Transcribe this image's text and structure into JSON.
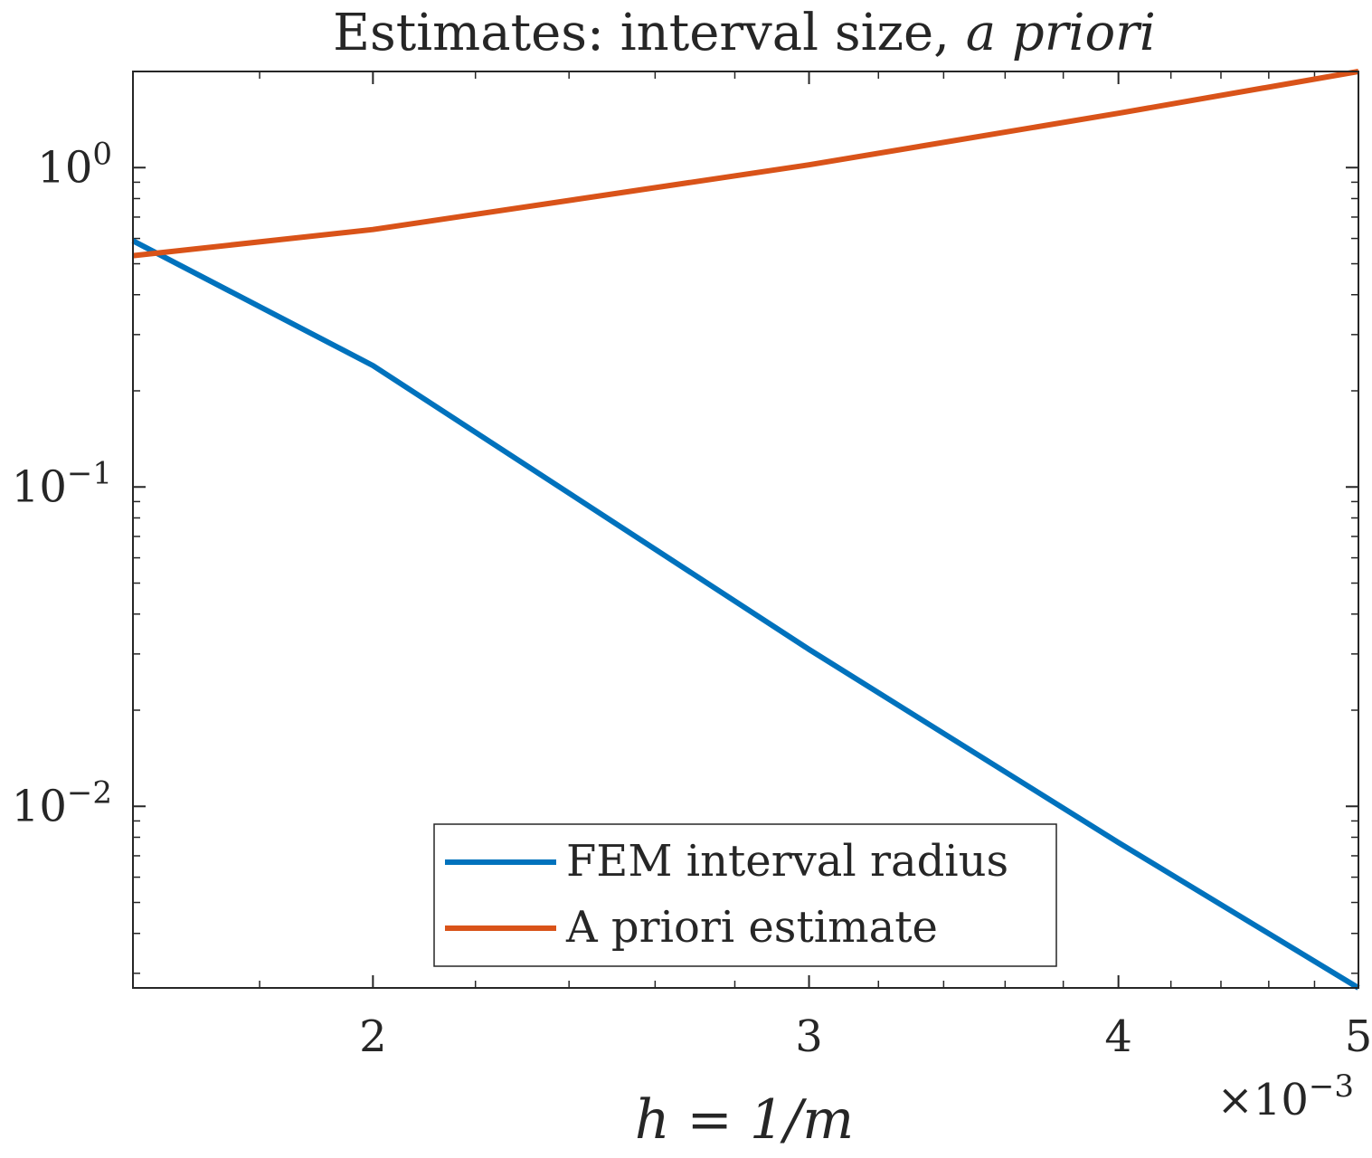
{
  "chart_data": {
    "type": "line",
    "title": "Estimates: interval size, a priori",
    "title_plain": "Estimates: interval size, ",
    "title_italic": "a priori",
    "xlabel": "h = 1/m",
    "x_exponent_label": "×10",
    "x_exponent": "−3",
    "xscale": "log",
    "yscale": "log",
    "xlim": [
      0.0016,
      0.005
    ],
    "ylim": [
      0.0027,
      2.0
    ],
    "x_ticks": [
      {
        "value": 0.002,
        "label": "2"
      },
      {
        "value": 0.003,
        "label": "3"
      },
      {
        "value": 0.004,
        "label": "4"
      },
      {
        "value": 0.005,
        "label": "5"
      }
    ],
    "y_ticks": [
      {
        "value": 1,
        "base": "10",
        "exp": "0"
      },
      {
        "value": 0.1,
        "base": "10",
        "exp": "−1"
      },
      {
        "value": 0.01,
        "base": "10",
        "exp": "−2"
      }
    ],
    "grid": false,
    "legend_position": "bottom-center",
    "series": [
      {
        "name": "FEM interval radius",
        "color": "#0072BD",
        "x": [
          0.0016,
          0.002,
          0.003,
          0.004,
          0.005
        ],
        "y": [
          0.59,
          0.24,
          0.031,
          0.0077,
          0.0027
        ]
      },
      {
        "name": "A priori estimate",
        "color": "#D95319",
        "x": [
          0.0016,
          0.002,
          0.003,
          0.004,
          0.005
        ],
        "y": [
          0.53,
          0.64,
          1.02,
          1.48,
          2.0
        ]
      }
    ]
  }
}
